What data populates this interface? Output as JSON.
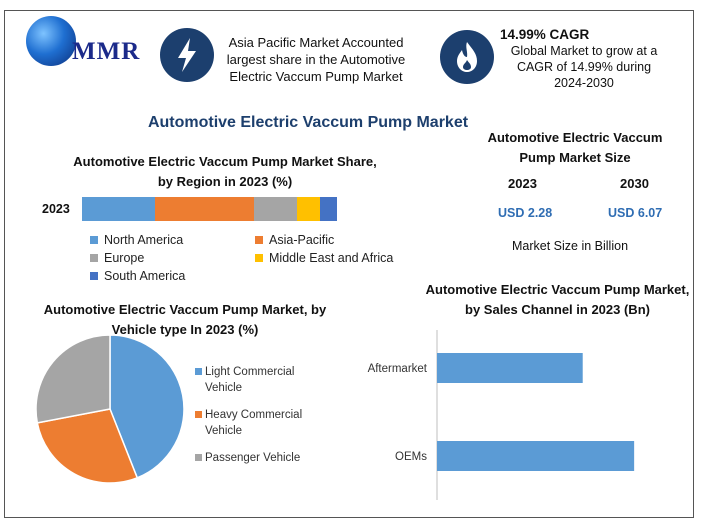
{
  "logo": {
    "text": "MMR"
  },
  "highlights": [
    {
      "icon": "lightning-bolt-icon",
      "text": "Asia Pacific Market Accounted largest share in the Automotive Electric Vaccum Pump Market"
    },
    {
      "icon": "flame-icon",
      "title": "14.99% CAGR",
      "text": "Global Market to grow at a CAGR of 14.99% during 2024-2030"
    }
  ],
  "main_title": "Automotive Electric Vaccum Pump Market",
  "market_size": {
    "title": "Automotive Electric Vaccum Pump Market Size",
    "years": [
      "2023",
      "2030"
    ],
    "values": [
      "USD 2.28",
      "USD 6.07"
    ],
    "note": "Market Size in Billion"
  },
  "chart_data": [
    {
      "type": "bar",
      "orientation": "horizontal-stacked",
      "title": "Automotive Electric Vaccum Pump Market Share, by Region in 2023 (%)",
      "categories": [
        "2023"
      ],
      "series": [
        {
          "name": "North America",
          "values": [
            22
          ],
          "color": "#5b9bd5"
        },
        {
          "name": "Asia-Pacific",
          "values": [
            30
          ],
          "color": "#ed7d31"
        },
        {
          "name": "Europe",
          "values": [
            13
          ],
          "color": "#a5a5a5"
        },
        {
          "name": "Middle East and Africa",
          "values": [
            7
          ],
          "color": "#ffc000"
        },
        {
          "name": "South America",
          "values": [
            5
          ],
          "color": "#4472c4"
        }
      ]
    },
    {
      "type": "pie",
      "title": "Automotive Electric Vaccum Pump Market, by Vehicle type In 2023 (%)",
      "slices": [
        {
          "name": "Light Commercial Vehicle",
          "value": 44,
          "color": "#5b9bd5"
        },
        {
          "name": "Heavy Commercial Vehicle",
          "value": 28,
          "color": "#ed7d31"
        },
        {
          "name": "Passenger Vehicle",
          "value": 28,
          "color": "#a5a5a5"
        }
      ]
    },
    {
      "type": "bar",
      "orientation": "horizontal",
      "title": "Automotive Electric Vaccum Pump Market, by Sales Channel in 2023 (Bn)",
      "categories": [
        "Aftermarket",
        "OEMs"
      ],
      "values": [
        0.85,
        1.15
      ],
      "color": "#5b9bd5",
      "xlim": [
        0,
        1.4
      ]
    }
  ]
}
